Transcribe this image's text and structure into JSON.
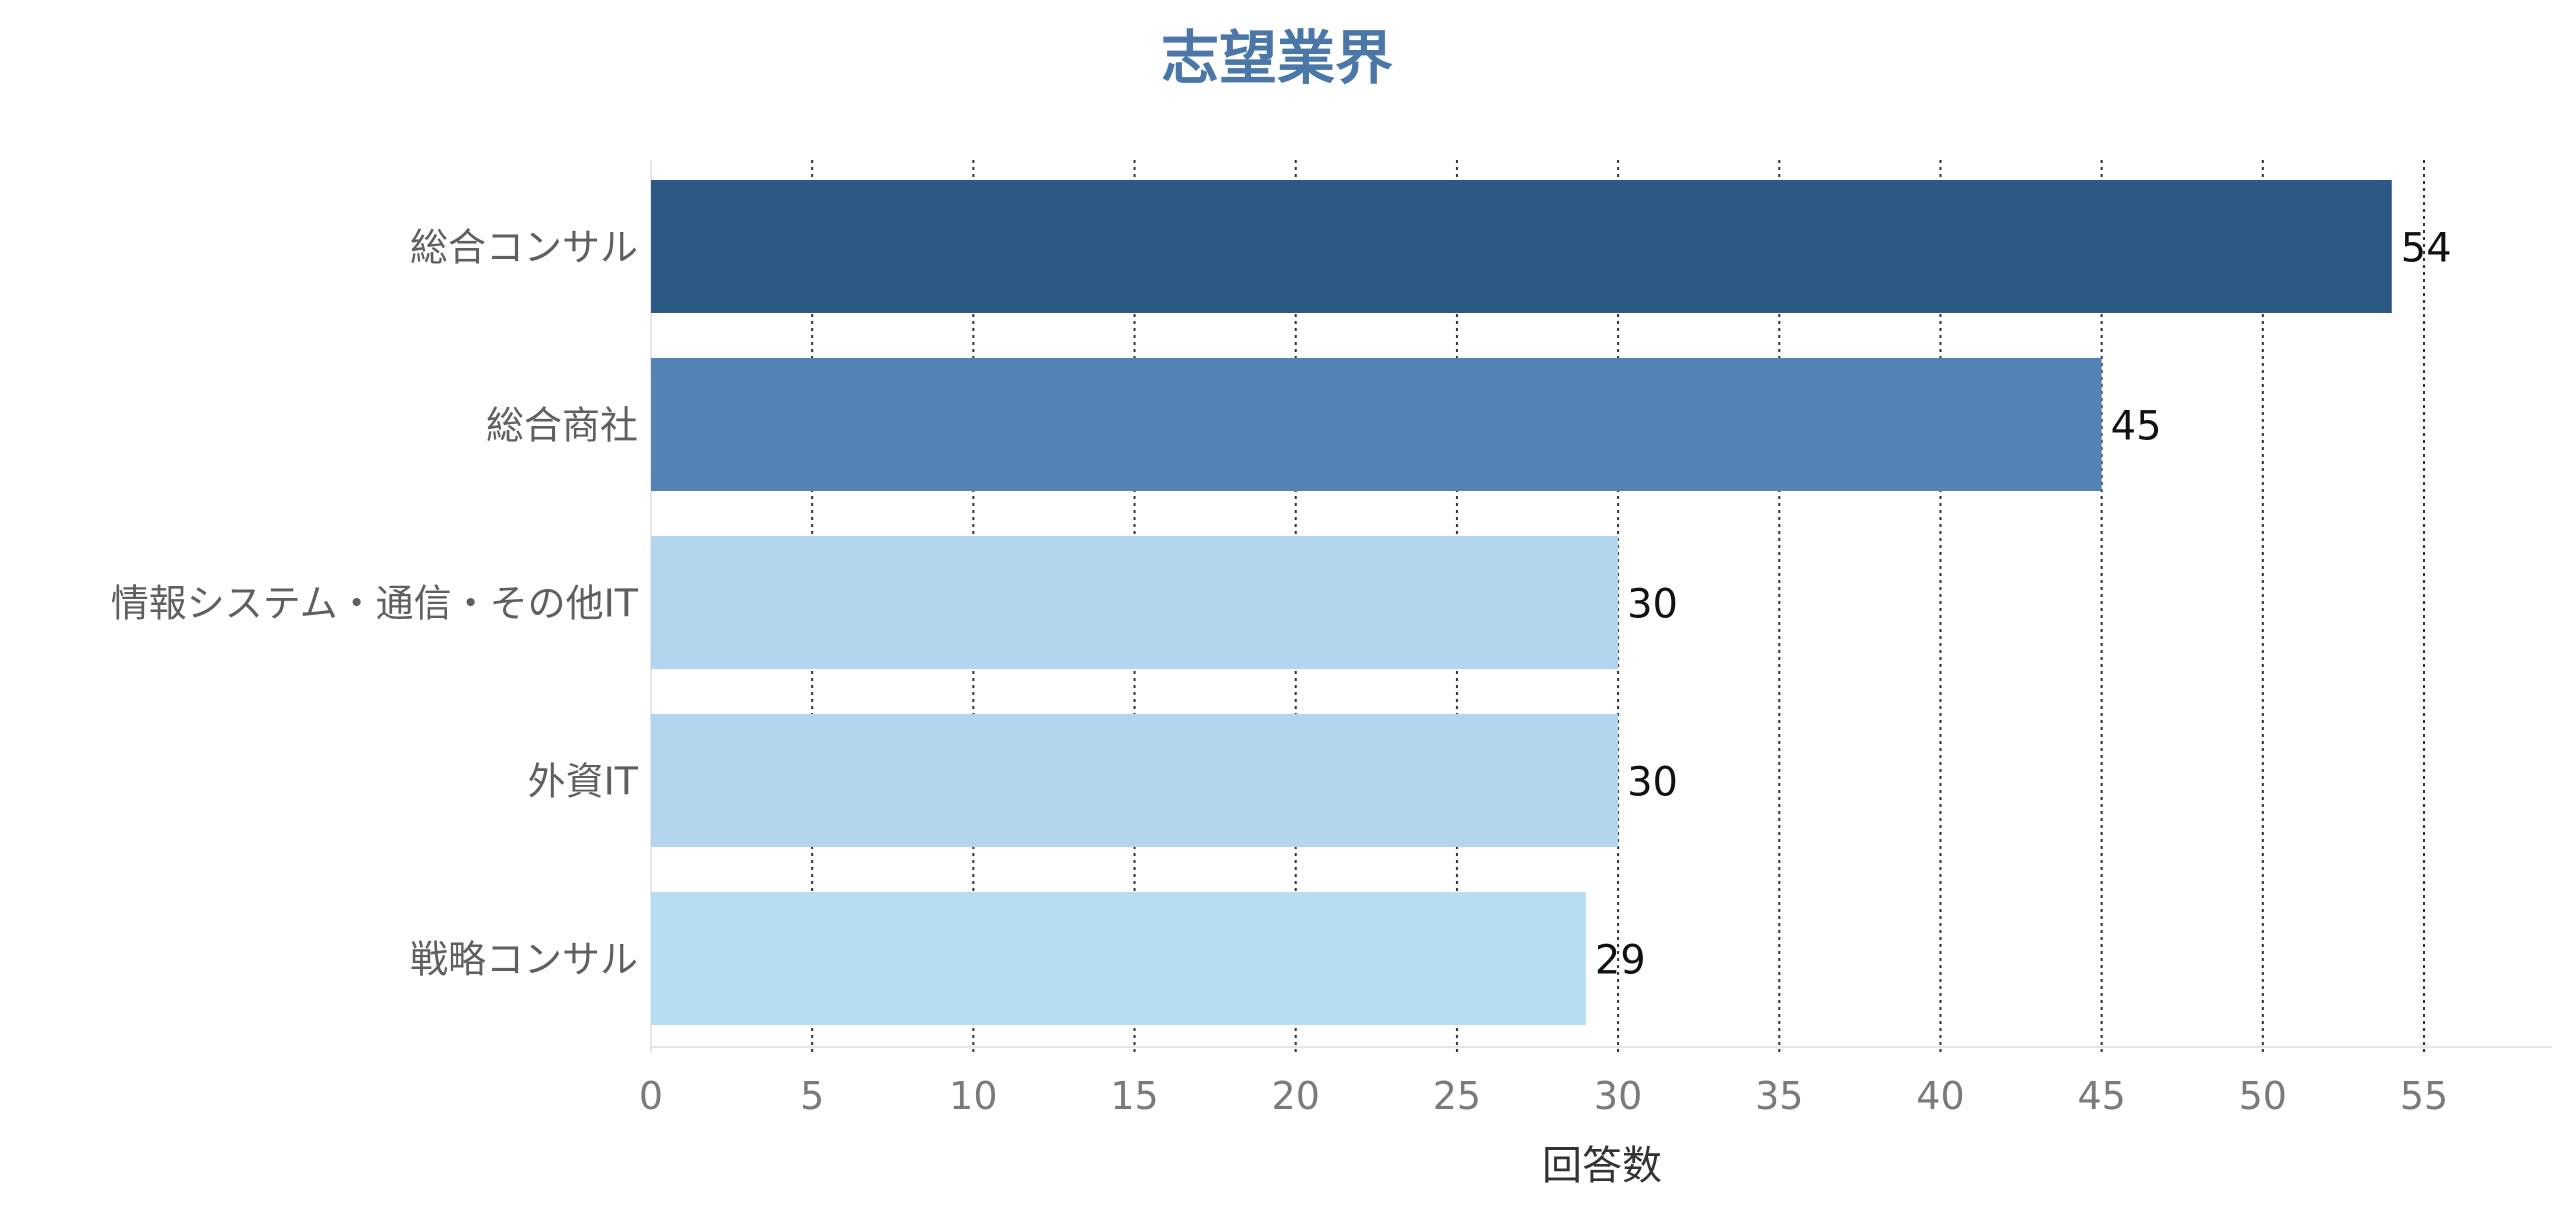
{
  "chart_data": {
    "type": "bar",
    "orientation": "horizontal",
    "title": "志望業界",
    "xlabel": "回答数",
    "ylabel": "",
    "categories": [
      "総合コンサル",
      "総合商社",
      "情報システム・通信・その他IT",
      "外資IT",
      "戦略コンサル"
    ],
    "values": [
      54,
      45,
      30,
      30,
      29
    ],
    "xlim": [
      0,
      55
    ],
    "x_ticks": [
      0,
      5,
      10,
      15,
      20,
      25,
      30,
      35,
      40,
      45,
      50,
      55
    ],
    "grid": "vertical dotted",
    "data_labels": true,
    "legend": "none"
  },
  "colors": {
    "title": "#4a77a8",
    "bars": [
      "#2c5884",
      "#5383b5",
      "#b3d6ee",
      "#b3d6ee",
      "#b8ddf1"
    ],
    "grid": "#333333"
  }
}
